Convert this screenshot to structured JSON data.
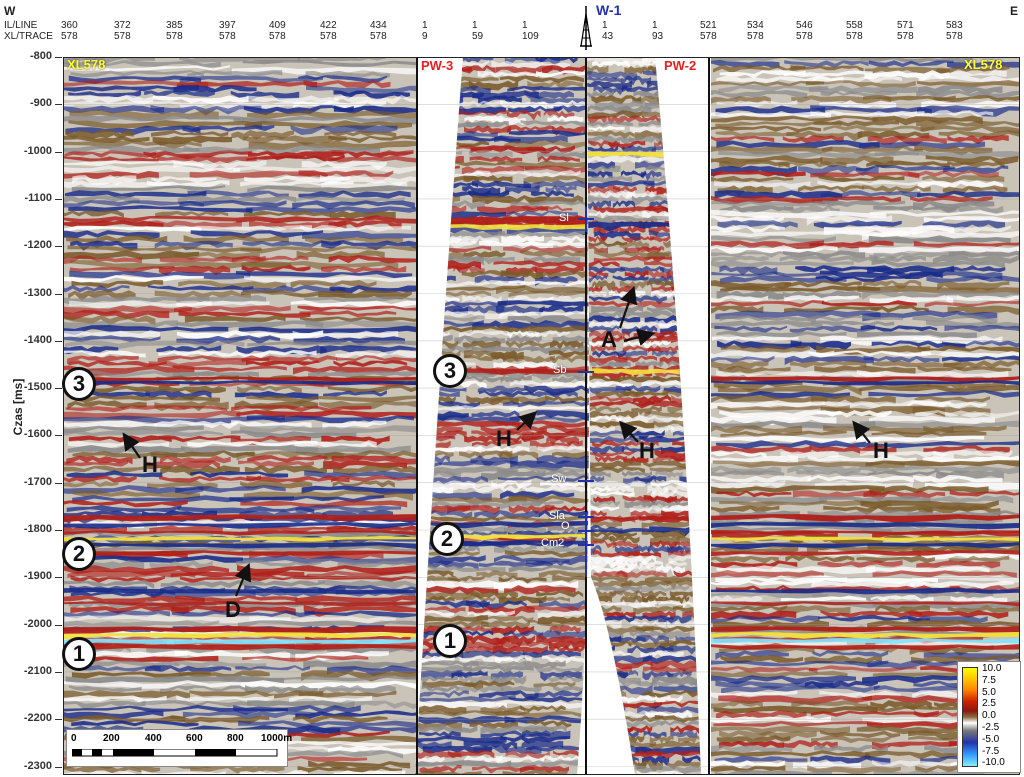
{
  "header": {
    "west": "W",
    "east": "E",
    "row1_label": "IL/LINE",
    "row2_label": "XL/TRACE",
    "well_name": "W-1",
    "col_il": [
      "360",
      "372",
      "385",
      "397",
      "409",
      "422",
      "434",
      "1",
      "1",
      "1",
      "1",
      "1",
      "521",
      "534",
      "546",
      "558",
      "571",
      "583"
    ],
    "col_xl": [
      "578",
      "578",
      "578",
      "578",
      "578",
      "578",
      "578",
      "9",
      "59",
      "109",
      "43",
      "93",
      "578",
      "578",
      "578",
      "578",
      "578",
      "578"
    ]
  },
  "axis": {
    "ylabel": "Czas [ms]",
    "ticks": [
      "-800",
      "-900",
      "-1000",
      "-1100",
      "-1200",
      "-1300",
      "-1400",
      "-1500",
      "-1600",
      "-1700",
      "-1800",
      "-1900",
      "-2000",
      "-2100",
      "-2200",
      "-2300"
    ]
  },
  "panels": {
    "left_title": "XL578",
    "right_title": "XL578",
    "pw3_title": "PW-3",
    "pw2_title": "PW-2"
  },
  "horizon_markers": {
    "m1": "1",
    "m2": "2",
    "m3": "3"
  },
  "annotations": {
    "h": "H",
    "d": "D",
    "a": "A"
  },
  "well_tops": [
    "Sl",
    "Sb",
    "Sw",
    "Sla",
    "O",
    "Cm2"
  ],
  "scalebar": {
    "labels": [
      "0",
      "200",
      "400",
      "600",
      "800",
      "1000m"
    ]
  },
  "colorbar": {
    "labels": [
      "10.0",
      "7.5",
      "5.0",
      "2.5",
      "0.0",
      "-2.5",
      "-5.0",
      "-7.5",
      "-10.0"
    ],
    "colors": [
      "#ffff00",
      "#ffcc00",
      "#ff8800",
      "#cc2200",
      "#8a1a10",
      "#8a6a40",
      "#ffffff",
      "#777777",
      "#2233aa",
      "#3399ff",
      "#88eeff"
    ]
  },
  "colors": {
    "amp_red": "#b0201a",
    "amp_blue": "#1a2c8a",
    "amp_brown": "#7a5a2a",
    "amp_yellow": "#f3e23c",
    "amp_cyan": "#7fe6ff",
    "title_yellow": "#ffff33",
    "title_red": "#e82020",
    "well_blue": "#2233aa"
  }
}
